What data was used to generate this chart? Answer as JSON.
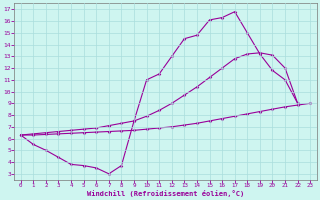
{
  "background_color": "#cceeff",
  "grid_color": "#b0e0e0",
  "line_color": "#990099",
  "xlabel": "Windchill (Refroidissement éolien,°C)",
  "xlim": [
    -0.5,
    23.5
  ],
  "ylim": [
    2.5,
    17.5
  ],
  "yticks": [
    3,
    4,
    5,
    6,
    7,
    8,
    9,
    10,
    11,
    12,
    13,
    14,
    15,
    16,
    17
  ],
  "xticks": [
    0,
    1,
    2,
    3,
    4,
    5,
    6,
    7,
    8,
    9,
    10,
    11,
    12,
    13,
    14,
    15,
    16,
    17,
    18,
    19,
    20,
    21,
    22,
    23
  ],
  "curve1_x": [
    0,
    1,
    2,
    3,
    4,
    5,
    6,
    7,
    8,
    9,
    10,
    11,
    12,
    13,
    14,
    15,
    16,
    17,
    18,
    19,
    20,
    21
  ],
  "curve1_y": [
    6.3,
    5.5,
    5.0,
    4.4,
    3.8,
    3.7,
    3.5,
    3.0,
    3.7,
    7.5,
    11.0,
    11.5,
    13.0,
    14.5,
    14.8,
    16.1,
    16.3,
    16.8,
    15.0,
    13.2,
    11.8,
    11.0
  ],
  "curve2_x": [
    0,
    1,
    2,
    3,
    4,
    5,
    6,
    7,
    8,
    9,
    10,
    11,
    12,
    13,
    14,
    15,
    16,
    17,
    18,
    19,
    20,
    21,
    22
  ],
  "curve2_y": [
    6.3,
    6.4,
    6.5,
    6.6,
    6.7,
    6.8,
    6.9,
    7.1,
    7.3,
    7.5,
    7.9,
    8.4,
    9.0,
    9.7,
    10.4,
    11.2,
    12.0,
    12.8,
    13.2,
    13.3,
    13.1,
    12.0,
    9.0
  ],
  "curve3_x": [
    0,
    1,
    2,
    3,
    4,
    5,
    6,
    7,
    8,
    9,
    10,
    11,
    12,
    13,
    14,
    15,
    16,
    17,
    18,
    19,
    20,
    21,
    22,
    23
  ],
  "curve3_y": [
    6.3,
    6.3,
    6.35,
    6.4,
    6.45,
    6.5,
    6.55,
    6.6,
    6.65,
    6.7,
    6.8,
    6.9,
    7.0,
    7.15,
    7.3,
    7.5,
    7.7,
    7.9,
    8.1,
    8.3,
    8.5,
    8.7,
    8.85,
    9.0
  ]
}
